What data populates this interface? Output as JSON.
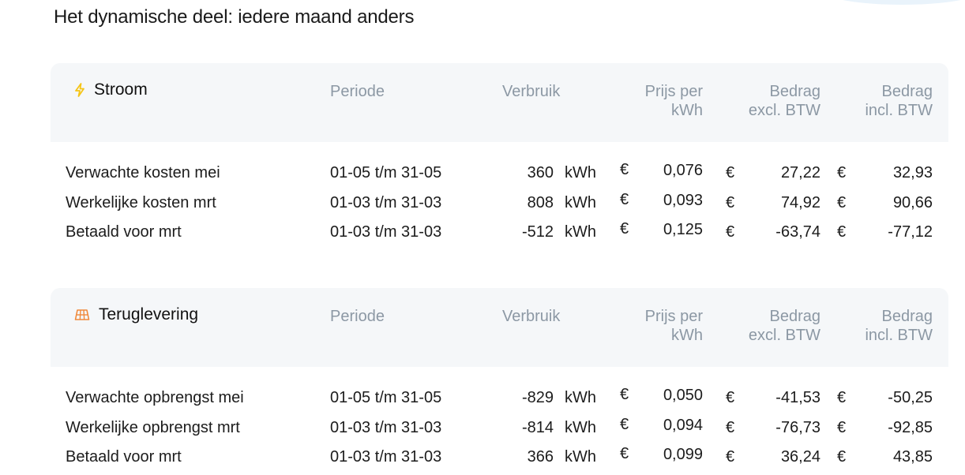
{
  "page": {
    "title": "Het dynamische deel: iedere maand anders"
  },
  "sections": [
    {
      "title": "Stroom",
      "icon": "lightning-icon",
      "icon_color": "#f5c518",
      "headers": {
        "periode": "Periode",
        "verbruik": "Verbruik",
        "prijs_line1": "Prijs per",
        "prijs_line2": "kWh",
        "excl_line1": "Bedrag",
        "excl_line2": "excl. BTW",
        "incl_line1": "Bedrag",
        "incl_line2": "incl. BTW"
      },
      "rows": [
        {
          "label": "Verwachte kosten mei",
          "periode": "01-05 t/m 31-05",
          "verbruik": "360",
          "unit": "kWh",
          "cur": "€",
          "prijs": "0,076",
          "excl": "27,22",
          "incl": "32,93"
        },
        {
          "label": "Werkelijke kosten mrt",
          "periode": "01-03 t/m 31-03",
          "verbruik": "808",
          "unit": "kWh",
          "cur": "€",
          "prijs": "0,093",
          "excl": "74,92",
          "incl": "90,66"
        },
        {
          "label": "Betaald voor mrt",
          "periode": "01-03 t/m 31-03",
          "verbruik": "-512",
          "unit": "kWh",
          "cur": "€",
          "prijs": "0,125",
          "excl": "-63,74",
          "incl": "-77,12"
        }
      ]
    },
    {
      "title": "Teruglevering",
      "icon": "solar-panel-icon",
      "icon_color": "#f08a3c",
      "headers": {
        "periode": "Periode",
        "verbruik": "Verbruik",
        "prijs_line1": "Prijs per",
        "prijs_line2": "kWh",
        "excl_line1": "Bedrag",
        "excl_line2": "excl. BTW",
        "incl_line1": "Bedrag",
        "incl_line2": "incl. BTW"
      },
      "rows": [
        {
          "label": "Verwachte opbrengst mei",
          "periode": "01-05 t/m 31-05",
          "verbruik": "-829",
          "unit": "kWh",
          "cur": "€",
          "prijs": "0,050",
          "excl": "-41,53",
          "incl": "-50,25"
        },
        {
          "label": "Werkelijke opbrengst mrt",
          "periode": "01-03 t/m 31-03",
          "verbruik": "-814",
          "unit": "kWh",
          "cur": "€",
          "prijs": "0,094",
          "excl": "-76,73",
          "incl": "-92,85"
        },
        {
          "label": "Betaald voor mrt",
          "periode": "01-03 t/m 31-03",
          "verbruik": "366",
          "unit": "kWh",
          "cur": "€",
          "prijs": "0,099",
          "excl": "36,24",
          "incl": "43,85"
        }
      ]
    }
  ]
}
